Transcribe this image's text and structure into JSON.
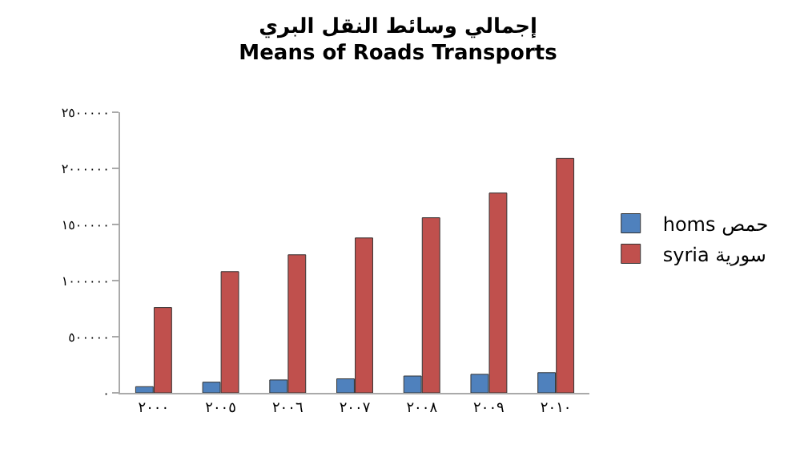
{
  "chart_data": {
    "type": "bar",
    "title": "إجمالي وسائط النقل البري",
    "subtitle": "Means of Roads Transports",
    "categories": [
      "٢٠٠٠",
      "٢٠٠٥",
      "٢٠٠٦",
      "٢٠٠٧",
      "٢٠٠٨",
      "٢٠٠٩",
      "٢٠١٠"
    ],
    "series": [
      {
        "name": "homs حمص",
        "color": "#4f81bd",
        "values": [
          55000,
          95000,
          115000,
          125000,
          150000,
          165000,
          180000
        ]
      },
      {
        "name": "syria سورية",
        "color": "#c0504d",
        "values": [
          760000,
          1080000,
          1230000,
          1380000,
          1560000,
          1780000,
          2090000
        ]
      }
    ],
    "ylim": [
      0,
      2500000
    ],
    "yticks": [
      {
        "value": 0,
        "label": "٠"
      },
      {
        "value": 500000,
        "label": "٥٠٠٠٠٠"
      },
      {
        "value": 1000000,
        "label": "١٠٠٠٠٠٠"
      },
      {
        "value": 1500000,
        "label": "١٥٠٠٠٠٠"
      },
      {
        "value": 2000000,
        "label": "٢٠٠٠٠٠٠"
      },
      {
        "value": 2500000,
        "label": "٢٥٠٠٠٠٠"
      }
    ],
    "legend": "right"
  }
}
